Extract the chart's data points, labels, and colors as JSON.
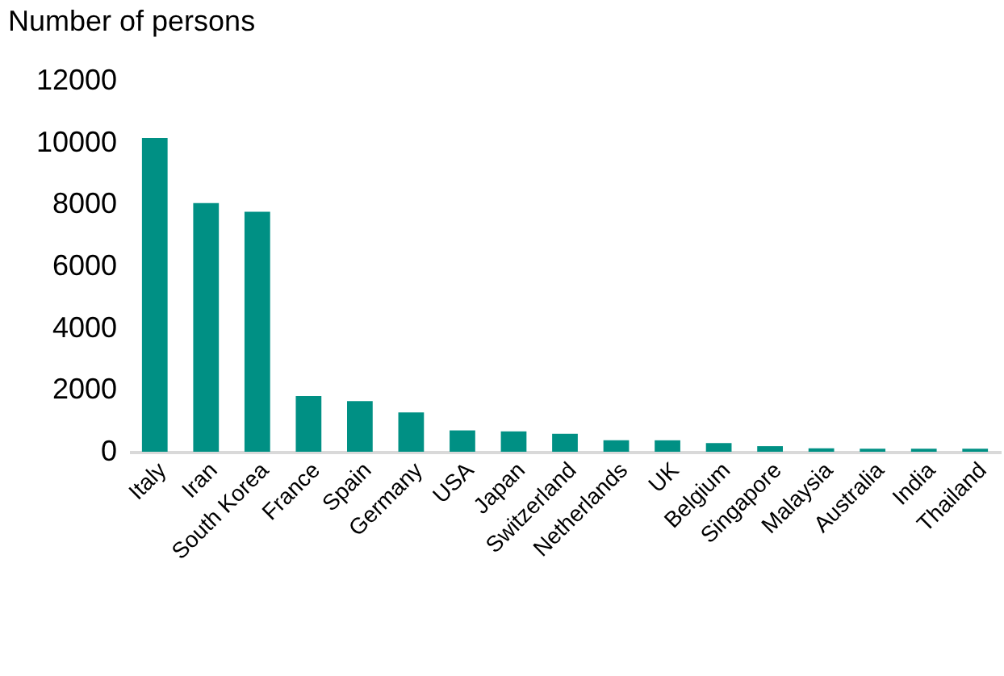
{
  "chart_data": {
    "type": "bar",
    "ylabel": "Number of persons",
    "categories": [
      "Italy",
      "Iran",
      "South Korea",
      "France",
      "Spain",
      "Germany",
      "USA",
      "Japan",
      "Switzerland",
      "Netherlands",
      "UK",
      "Belgium",
      "Singapore",
      "Malaysia",
      "Australia",
      "India",
      "Thailand"
    ],
    "values": [
      10150,
      8040,
      7760,
      1800,
      1640,
      1270,
      690,
      660,
      580,
      370,
      370,
      280,
      180,
      110,
      100,
      100,
      100
    ],
    "color": "#009084",
    "ylim": [
      0,
      12000
    ],
    "yticks": [
      0,
      2000,
      4000,
      6000,
      8000,
      10000,
      12000
    ],
    "grid": false
  }
}
